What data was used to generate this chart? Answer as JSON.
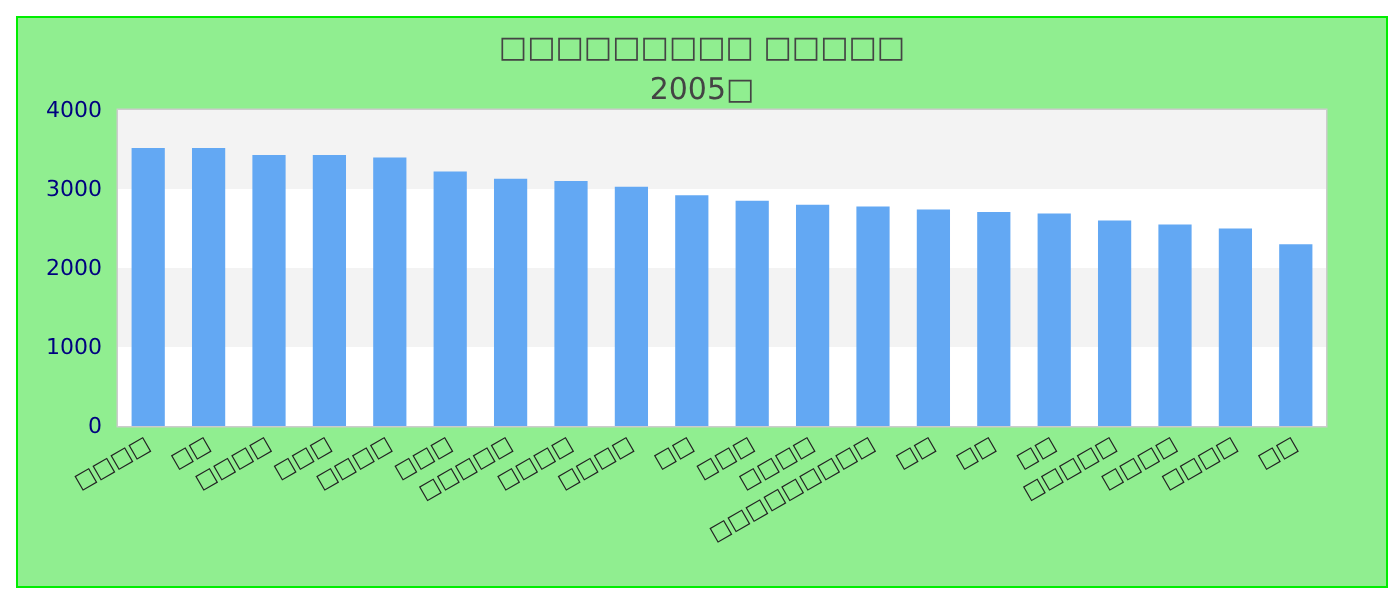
{
  "chart_data": {
    "type": "bar",
    "title": "□□□□□□□□□ □□□□□",
    "subtitle": "2005□",
    "categories": [
      "□□□□",
      "□□",
      "□□□□",
      "□□□",
      "□□□□",
      "□□□",
      "□□□□□",
      "□□□□",
      "□□□□",
      "□□",
      "□□□",
      "□□□□",
      "□□□□□□□□□",
      "□□",
      "□□",
      "□□",
      "□□□□□",
      "□□□□",
      "□□□□",
      "□□"
    ],
    "values": [
      3520,
      3520,
      3430,
      3430,
      3400,
      3220,
      3130,
      3100,
      3030,
      2920,
      2850,
      2800,
      2780,
      2740,
      2710,
      2690,
      2600,
      2550,
      2500,
      2300
    ],
    "color": "#63a8f3",
    "ylim": [
      0,
      4000
    ],
    "yticks": [
      0,
      1000,
      2000,
      3000,
      4000
    ],
    "grid": false
  }
}
